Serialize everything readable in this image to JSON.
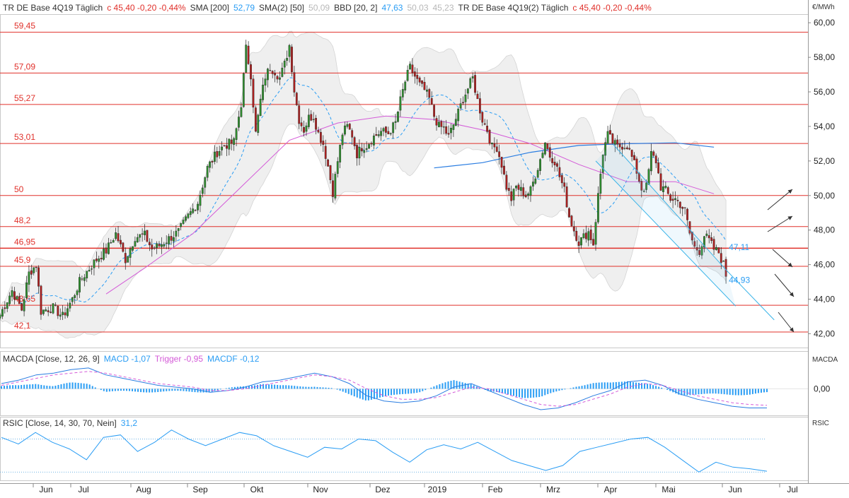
{
  "header": {
    "main": [
      {
        "text": "TR DE Base 4Q19 Täglich",
        "color": "dark"
      },
      {
        "text": "c 45,40 -0,20 -0,44%",
        "color": "red"
      },
      {
        "text": "SMA [200]",
        "color": "dark"
      },
      {
        "text": "52,79",
        "color": "blue"
      },
      {
        "text": "SMA(2) [50]",
        "color": "dark"
      },
      {
        "text": "50,09",
        "color": "gray"
      },
      {
        "text": "BBD [20, 2]",
        "color": "dark"
      },
      {
        "text": "47,63",
        "color": "blue"
      },
      {
        "text": "50,03",
        "color": "gray"
      },
      {
        "text": "45,23",
        "color": "gray"
      },
      {
        "text": "TR DE Base 4Q19(2) Täglich",
        "color": "dark"
      },
      {
        "text": "c 45,40 -0,20 -0,44%",
        "color": "red"
      }
    ],
    "macd": [
      {
        "text": "MACDA [Close, 12, 26, 9]",
        "color": "dark"
      },
      {
        "text": "MACD -1,07",
        "color": "blue"
      },
      {
        "text": "Trigger -0,95",
        "color": "pink"
      },
      {
        "text": "MACDF -0,12",
        "color": "blue"
      }
    ],
    "rsi": [
      {
        "text": "RSIC [Close, 14, 30, 70, Nein]",
        "color": "dark"
      },
      {
        "text": "31,2",
        "color": "blue"
      }
    ]
  },
  "panel_labels": {
    "unit": "€/MWh",
    "macd": "MACDA",
    "rsi": "RSIC"
  },
  "colors": {
    "up": "#2f8f2f",
    "down": "#b02020",
    "level": "#e0302a",
    "sma200": "#2a7de1",
    "sma50": "#d45ad8",
    "bollinger": "#2a9df4",
    "band_fill": "#efefef"
  },
  "chart_data": [
    {
      "type": "candlestick",
      "title": "TR DE Base 4Q19 Täglich",
      "ylabel": "€/MWh",
      "ylim": [
        41.2,
        60.5
      ],
      "yticks": [
        "60,00",
        "58,00",
        "56,00",
        "54,00",
        "52,00",
        "50,00",
        "48,00",
        "46,00",
        "44,00",
        "42,00"
      ],
      "ytick_values": [
        60,
        58,
        56,
        54,
        52,
        50,
        48,
        46,
        44,
        42
      ],
      "x_months": [
        "Jun",
        "Jul",
        "Aug",
        "Sep",
        "Okt",
        "Nov",
        "Dez",
        "2019",
        "Feb",
        "Mrz",
        "Apr",
        "Mai",
        "Jun",
        "Jul"
      ],
      "price_path": [
        [
          0,
          43.1
        ],
        [
          5,
          44.5
        ],
        [
          9,
          43.4
        ],
        [
          12,
          45.5
        ],
        [
          15,
          46.0
        ],
        [
          17,
          43.3
        ],
        [
          19,
          43.4
        ],
        [
          22,
          43.5
        ],
        [
          26,
          43.0
        ],
        [
          30,
          44.0
        ],
        [
          33,
          45.0
        ],
        [
          36,
          45.6
        ],
        [
          40,
          46.3
        ],
        [
          44,
          46.8
        ],
        [
          48,
          47.8
        ],
        [
          52,
          46.3
        ],
        [
          56,
          47.6
        ],
        [
          60,
          47.7
        ],
        [
          63,
          46.9
        ],
        [
          66,
          47.1
        ],
        [
          70,
          47.5
        ],
        [
          74,
          47.9
        ],
        [
          78,
          48.8
        ],
        [
          82,
          49.6
        ],
        [
          86,
          51.6
        ],
        [
          90,
          52.5
        ],
        [
          93,
          52.9
        ],
        [
          97,
          53.1
        ],
        [
          100,
          55.3
        ],
        [
          102,
          58.5
        ],
        [
          104,
          57.0
        ],
        [
          106,
          53.6
        ],
        [
          108,
          55.5
        ],
        [
          110,
          56.9
        ],
        [
          112,
          57.4
        ],
        [
          114,
          57.2
        ],
        [
          116,
          56.8
        ],
        [
          118,
          57.6
        ],
        [
          120,
          58.7
        ],
        [
          122,
          56.1
        ],
        [
          124,
          54.4
        ],
        [
          126,
          53.8
        ],
        [
          128,
          54.5
        ],
        [
          130,
          54.6
        ],
        [
          132,
          53.6
        ],
        [
          134,
          53.0
        ],
        [
          136,
          51.7
        ],
        [
          138,
          50.2
        ],
        [
          140,
          52.0
        ],
        [
          142,
          53.6
        ],
        [
          144,
          54.0
        ],
        [
          146,
          53.5
        ],
        [
          148,
          52.4
        ],
        [
          150,
          52.8
        ],
        [
          152,
          52.9
        ],
        [
          155,
          53.4
        ],
        [
          158,
          53.7
        ],
        [
          161,
          53.6
        ],
        [
          164,
          54.2
        ],
        [
          166,
          55.5
        ],
        [
          168,
          56.6
        ],
        [
          170,
          57.4
        ],
        [
          172,
          56.9
        ],
        [
          174,
          56.4
        ],
        [
          176,
          56.1
        ],
        [
          178,
          55.6
        ],
        [
          180,
          54.6
        ],
        [
          182,
          54.0
        ],
        [
          184,
          53.9
        ],
        [
          186,
          53.4
        ],
        [
          188,
          54.1
        ],
        [
          190,
          54.8
        ],
        [
          192,
          55.6
        ],
        [
          194,
          56.2
        ],
        [
          196,
          56.8
        ],
        [
          198,
          55.5
        ],
        [
          200,
          54.4
        ],
        [
          202,
          53.8
        ],
        [
          204,
          52.8
        ],
        [
          206,
          52.8
        ],
        [
          208,
          51.8
        ],
        [
          210,
          50.5
        ],
        [
          212,
          49.8
        ],
        [
          214,
          50.5
        ],
        [
          216,
          50.3
        ],
        [
          218,
          50.0
        ],
        [
          220,
          50.3
        ],
        [
          222,
          51.2
        ],
        [
          224,
          52.1
        ],
        [
          226,
          53.1
        ],
        [
          228,
          52.3
        ],
        [
          230,
          52.0
        ],
        [
          232,
          51.1
        ],
        [
          234,
          50.3
        ],
        [
          236,
          48.8
        ],
        [
          238,
          48.0
        ],
        [
          240,
          47.3
        ],
        [
          242,
          47.6
        ],
        [
          244,
          47.9
        ],
        [
          246,
          47.2
        ],
        [
          248,
          50.0
        ],
        [
          250,
          52.5
        ],
        [
          252,
          53.5
        ],
        [
          254,
          53.1
        ],
        [
          256,
          52.8
        ],
        [
          258,
          52.9
        ],
        [
          260,
          52.9
        ],
        [
          262,
          52.2
        ],
        [
          264,
          51.4
        ],
        [
          266,
          50.4
        ],
        [
          268,
          50.5
        ],
        [
          270,
          52.4
        ],
        [
          272,
          52.0
        ],
        [
          274,
          50.5
        ],
        [
          276,
          50.3
        ],
        [
          278,
          49.8
        ],
        [
          280,
          49.8
        ],
        [
          282,
          49.5
        ],
        [
          284,
          49.1
        ],
        [
          286,
          47.8
        ],
        [
          288,
          47.0
        ],
        [
          290,
          46.8
        ],
        [
          292,
          47.7
        ],
        [
          294,
          47.4
        ],
        [
          296,
          46.9
        ],
        [
          298,
          46.7
        ],
        [
          300,
          46.0
        ],
        [
          301,
          45.4
        ]
      ],
      "levels": [
        59.45,
        57.09,
        55.27,
        53.01,
        50,
        48.2,
        46.95,
        45.9,
        43.65,
        42.1
      ],
      "level_labels": [
        "59,45",
        "57,09",
        "55,27",
        "53,01",
        "50",
        "48,2",
        "46,95",
        "45,9",
        "43,65",
        "42,1"
      ],
      "sma200": [
        [
          180,
          51.6
        ],
        [
          200,
          51.9
        ],
        [
          220,
          52.5
        ],
        [
          240,
          52.9
        ],
        [
          260,
          53.0
        ],
        [
          280,
          53.05
        ],
        [
          296,
          52.8
        ]
      ],
      "sma50": [
        [
          44,
          44.3
        ],
        [
          60,
          45.8
        ],
        [
          80,
          47.8
        ],
        [
          100,
          50.5
        ],
        [
          120,
          53.2
        ],
        [
          140,
          54.2
        ],
        [
          160,
          54.6
        ],
        [
          180,
          54.4
        ],
        [
          200,
          53.8
        ],
        [
          220,
          53.0
        ],
        [
          240,
          51.8
        ],
        [
          260,
          50.8
        ],
        [
          280,
          50.8
        ],
        [
          296,
          50.1
        ]
      ],
      "channel": {
        "upper": [
          [
            254,
            53.0
          ],
          [
            301,
            45.7
          ]
        ],
        "lower": [
          [
            247,
            52.0
          ],
          [
            305,
            43.6
          ]
        ],
        "tail": [
          [
            301,
            45.7
          ],
          [
            321,
            42.8
          ]
        ]
      },
      "value_labels": [
        {
          "text": "47,11",
          "x": 301,
          "y": 47.0
        },
        {
          "text": "44,93",
          "x": 301,
          "y": 45.1
        }
      ]
    },
    {
      "type": "line",
      "title": "MACDA [Close, 12, 26, 9]",
      "ylim": [
        -1.2,
        1.6
      ],
      "yticks": [
        "0,00"
      ],
      "series": [
        {
          "name": "MACD",
          "values": [
            0.3,
            0.5,
            0.8,
            0.9,
            1.1,
            1.2,
            0.8,
            0.6,
            0.4,
            0.2,
            0.1,
            0.0,
            -0.2,
            -0.1,
            0.1,
            0.4,
            0.5,
            0.7,
            0.9,
            0.7,
            0.3,
            -0.4,
            -0.7,
            -0.8,
            -0.7,
            -0.4,
            0.1,
            0.3,
            -0.1,
            -0.5,
            -0.9,
            -1.2,
            -1.1,
            -0.8,
            -0.4,
            -0.1,
            0.4,
            0.5,
            0.2,
            -0.3,
            -0.6,
            -0.8,
            -1.0,
            -1.1,
            -1.1
          ]
        },
        {
          "name": "Trigger",
          "values": [
            0.2,
            0.4,
            0.6,
            0.8,
            0.9,
            1.0,
            0.9,
            0.7,
            0.5,
            0.3,
            0.2,
            0.1,
            -0.1,
            -0.1,
            0.0,
            0.2,
            0.4,
            0.6,
            0.8,
            0.7,
            0.5,
            0.0,
            -0.4,
            -0.6,
            -0.6,
            -0.5,
            -0.2,
            0.1,
            0.0,
            -0.3,
            -0.6,
            -0.9,
            -1.0,
            -0.9,
            -0.6,
            -0.3,
            0.1,
            0.3,
            0.2,
            -0.1,
            -0.4,
            -0.6,
            -0.8,
            -0.9,
            -0.95
          ]
        }
      ]
    },
    {
      "type": "line",
      "title": "RSIC [Close, 14, 30, 70, Nein]",
      "ylim": [
        20,
        85
      ],
      "series": [
        {
          "name": "RSIC",
          "values": [
            72,
            64,
            78,
            66,
            58,
            45,
            72,
            75,
            55,
            66,
            81,
            70,
            62,
            70,
            78,
            74,
            62,
            55,
            48,
            60,
            58,
            70,
            68,
            54,
            42,
            57,
            63,
            58,
            66,
            55,
            44,
            38,
            32,
            38,
            55,
            60,
            65,
            70,
            72,
            60,
            45,
            30,
            42,
            36,
            34,
            31
          ]
        }
      ]
    }
  ]
}
